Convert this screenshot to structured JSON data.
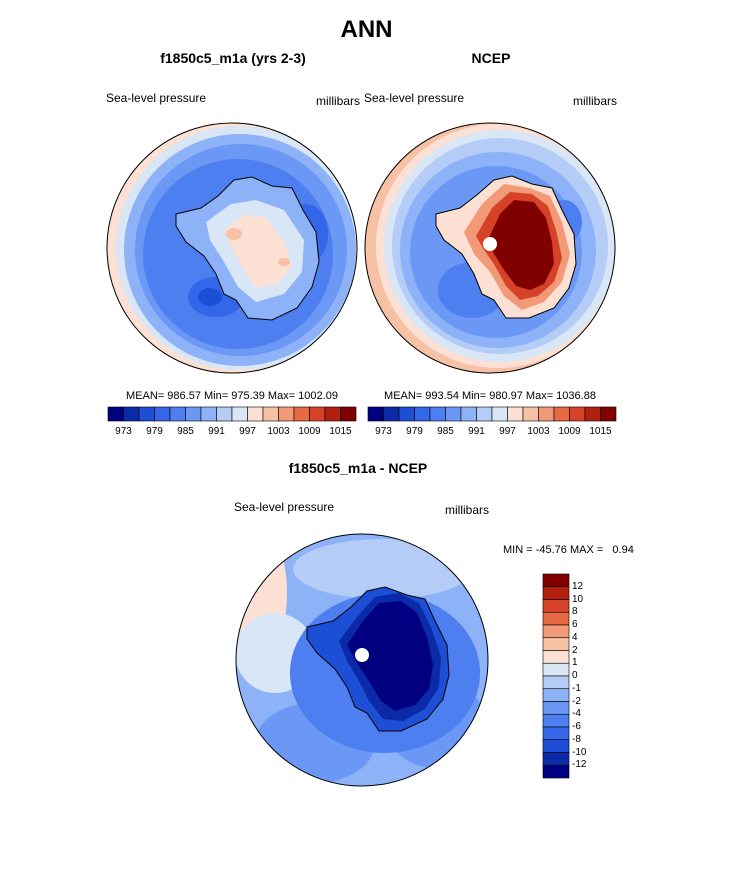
{
  "page": {
    "title": "ANN"
  },
  "colors": {
    "map_scale": [
      "#000080",
      "#0a2aa8",
      "#1d4fd6",
      "#3366e8",
      "#4d7ff0",
      "#6b98f5",
      "#8db2f7",
      "#b4ccf6",
      "#d9e6f6",
      "#fbe0d3",
      "#f7c1a6",
      "#f29a77",
      "#e86a45",
      "#d54227",
      "#b3200f",
      "#800000"
    ],
    "diff_scale": [
      "#800000",
      "#b3200f",
      "#d54227",
      "#e86a45",
      "#f29a77",
      "#f7c1a6",
      "#fbe0d3",
      "#d9e6f6",
      "#b4ccf6",
      "#8db2f7",
      "#6b98f5",
      "#4d7ff0",
      "#3366e8",
      "#1d4fd6",
      "#0a2aa8",
      "#000080"
    ],
    "coast": "#000000",
    "pole_marker": "#ffffff"
  },
  "panels": [
    {
      "id": "model",
      "title": "f1850c5_m1a (yrs 2-3)",
      "variable": "Sea-level pressure",
      "units": "millibars",
      "stats": "MEAN= 986.57  Min= 975.39  Max= 1002.09",
      "colorbar_ticks": [
        "973",
        "979",
        "985",
        "991",
        "997",
        "1003",
        "1009",
        "1015"
      ]
    },
    {
      "id": "obs",
      "title": "NCEP",
      "variable": "Sea-level pressure",
      "units": "millibars",
      "stats": "MEAN= 993.54  Min= 980.97  Max= 1036.88",
      "colorbar_ticks": [
        "973",
        "979",
        "985",
        "991",
        "997",
        "1003",
        "1009",
        "1015"
      ]
    },
    {
      "id": "diff",
      "title": "f1850c5_m1a - NCEP",
      "variable": "Sea-level pressure",
      "units": "millibars",
      "stats": "MIN = -45.76 MAX =   0.94",
      "colorbar_ticks": [
        "12",
        "10",
        "8",
        "6",
        "4",
        "2",
        "1",
        "0",
        "-1",
        "-2",
        "-4",
        "-6",
        "-8",
        "-10",
        "-12"
      ]
    }
  ]
}
